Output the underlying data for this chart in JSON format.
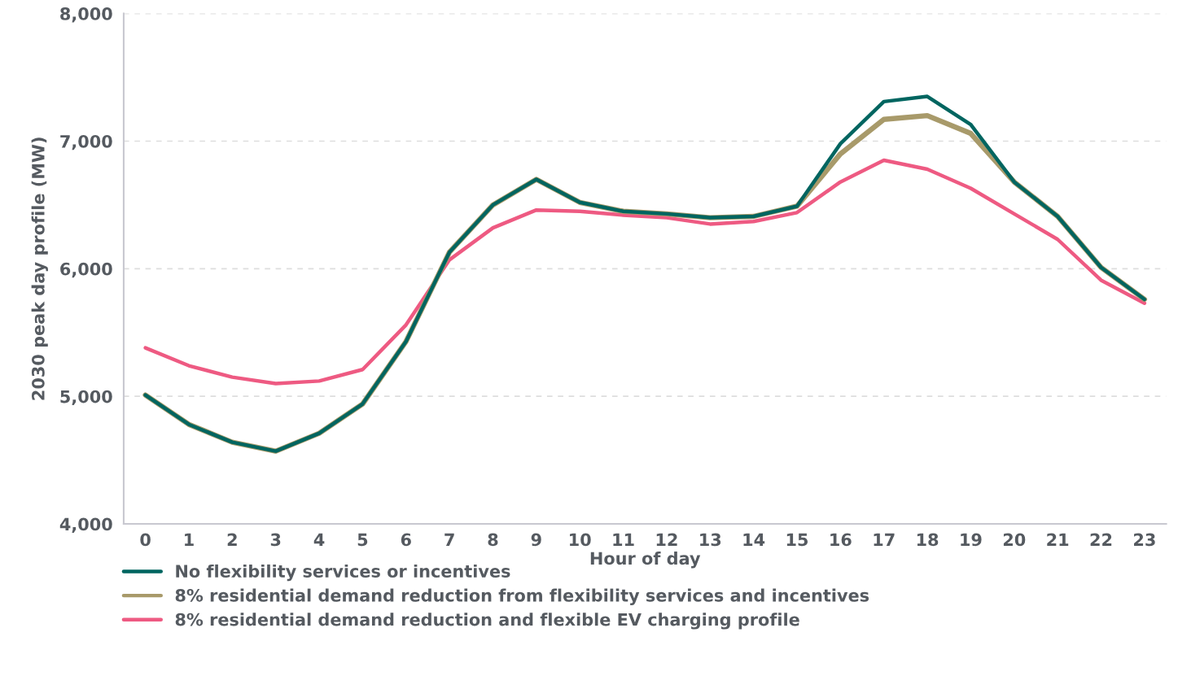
{
  "chart_data": {
    "type": "line",
    "xlabel": "Hour of day",
    "ylabel": "2030 peak day profile (MW)",
    "categories": [
      "0",
      "1",
      "2",
      "3",
      "4",
      "5",
      "6",
      "7",
      "8",
      "9",
      "10",
      "11",
      "12",
      "13",
      "14",
      "15",
      "16",
      "17",
      "18",
      "19",
      "20",
      "21",
      "22",
      "23"
    ],
    "series": [
      {
        "name": "No flexibility services or incentives",
        "color": "#006560",
        "values": [
          5010,
          4780,
          4640,
          4570,
          4710,
          4940,
          5430,
          6130,
          6500,
          6700,
          6520,
          6450,
          6430,
          6400,
          6410,
          6490,
          6980,
          7310,
          7350,
          7130,
          6680,
          6410,
          6010,
          5760
        ]
      },
      {
        "name": "8% residential demand reduction from flexibility services and incentives",
        "color": "#a89a6a",
        "values": [
          5010,
          4780,
          4640,
          4570,
          4710,
          4940,
          5430,
          6130,
          6500,
          6700,
          6520,
          6450,
          6430,
          6400,
          6410,
          6490,
          6900,
          7170,
          7200,
          7060,
          6680,
          6410,
          6010,
          5760
        ]
      },
      {
        "name": "8% residential demand reduction and flexible EV charging profile",
        "color": "#ee5a82",
        "values": [
          5380,
          5240,
          5150,
          5100,
          5120,
          5210,
          5560,
          6070,
          6320,
          6460,
          6450,
          6420,
          6400,
          6350,
          6370,
          6440,
          6680,
          6850,
          6780,
          6630,
          6430,
          6230,
          5910,
          5730
        ]
      }
    ],
    "ylim": [
      4000,
      8000
    ],
    "yticks": [
      {
        "value": 4000,
        "label": "4,000"
      },
      {
        "value": 5000,
        "label": "5,000"
      },
      {
        "value": 6000,
        "label": "6,000"
      },
      {
        "value": 7000,
        "label": "7,000"
      },
      {
        "value": 8000,
        "label": "8,000"
      }
    ],
    "grid": "y",
    "legend": "bottom left",
    "line_style": "solid",
    "marker": "none"
  }
}
